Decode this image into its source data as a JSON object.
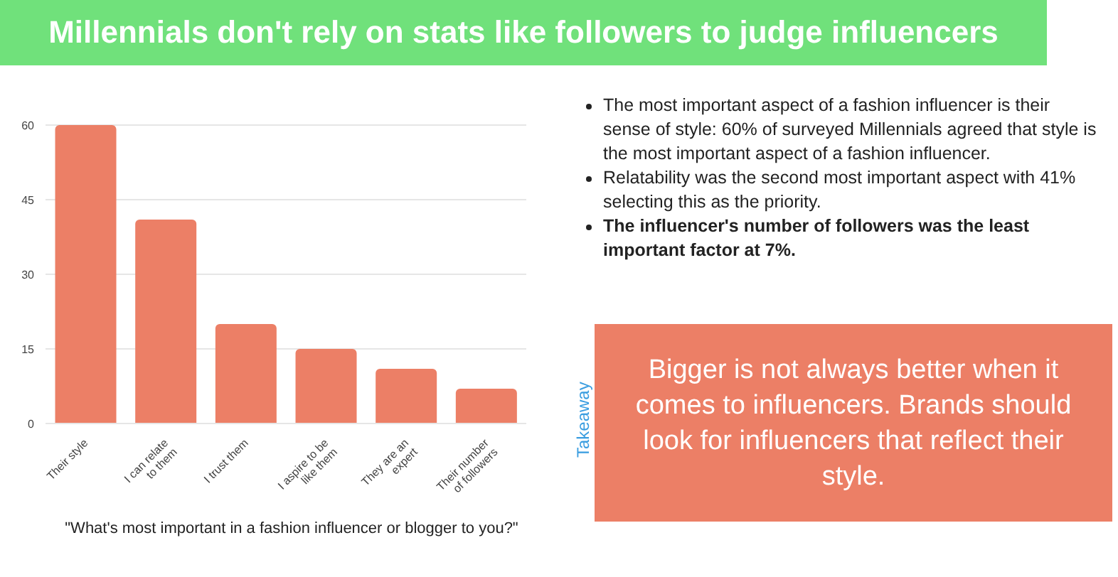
{
  "chart_data": {
    "type": "bar",
    "title": "Millennials don't rely on stats like followers to judge influencers",
    "xlabel": "\"What's most important in a fashion influencer or blogger to you?\"",
    "categories": [
      "Their style",
      "I can relate to them",
      "I trust them",
      "I aspire to be like them",
      "They are an expert",
      "Their number of followers"
    ],
    "values": [
      60,
      41,
      20,
      15,
      11,
      7
    ],
    "color": "#ec7f66",
    "ylim": [
      0,
      60
    ],
    "yticks": [
      0,
      15,
      30,
      45,
      60
    ],
    "grid": "y",
    "annotations": [
      "The most important aspect of a fashion influencer is their sense of style: 60% of surveyed Millennials agreed that style is the most important aspect of a fashion influencer.",
      "Relatability was the second most important aspect with 41% selecting this as the priority.",
      "The influencer's number of followers was the least important factor at 7%.",
      "Takeaway",
      "Bigger is not always better when it comes to influencers. Brands should look for influencers that reflect their style."
    ]
  }
}
